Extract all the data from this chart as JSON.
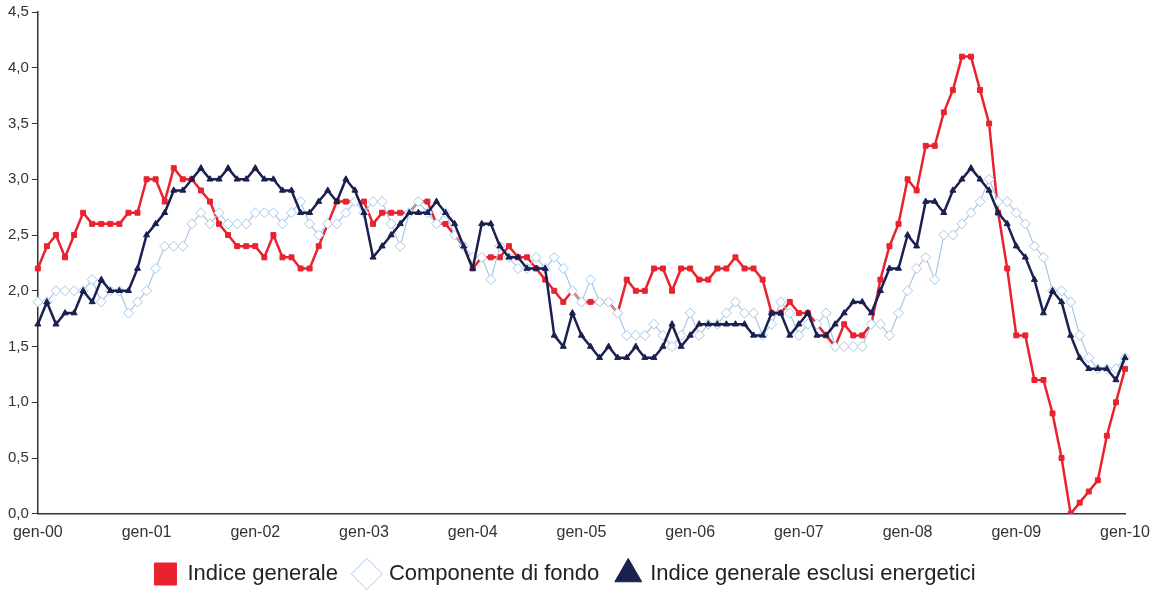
{
  "chart_data": {
    "type": "line",
    "categories": [
      "gen-00",
      null,
      null,
      null,
      null,
      null,
      null,
      null,
      null,
      null,
      null,
      null,
      "gen-01",
      null,
      null,
      null,
      null,
      null,
      null,
      null,
      null,
      null,
      null,
      null,
      "gen-02",
      null,
      null,
      null,
      null,
      null,
      null,
      null,
      null,
      null,
      null,
      null,
      "gen-03",
      null,
      null,
      null,
      null,
      null,
      null,
      null,
      null,
      null,
      null,
      null,
      "gen-04",
      null,
      null,
      null,
      null,
      null,
      null,
      null,
      null,
      null,
      null,
      null,
      "gen-05",
      null,
      null,
      null,
      null,
      null,
      null,
      null,
      null,
      null,
      null,
      null,
      "gen-06",
      null,
      null,
      null,
      null,
      null,
      null,
      null,
      null,
      null,
      null,
      null,
      "gen-07",
      null,
      null,
      null,
      null,
      null,
      null,
      null,
      null,
      null,
      null,
      null,
      "gen-08",
      null,
      null,
      null,
      null,
      null,
      null,
      null,
      null,
      null,
      null,
      null,
      "gen-09",
      null,
      null,
      null,
      null,
      null,
      null,
      null,
      null,
      null,
      null,
      null,
      "gen-10"
    ],
    "series": [
      {
        "name": "Indice generale",
        "color": "#e8232f",
        "marker": "square",
        "values": [
          2.2,
          2.4,
          2.5,
          2.3,
          2.5,
          2.7,
          2.6,
          2.6,
          2.6,
          2.6,
          2.7,
          2.7,
          3.0,
          3.0,
          2.8,
          3.1,
          3.0,
          3.0,
          2.9,
          2.8,
          2.6,
          2.5,
          2.4,
          2.4,
          2.4,
          2.3,
          2.5,
          2.3,
          2.3,
          2.2,
          2.2,
          2.4,
          2.6,
          2.8,
          2.8,
          2.8,
          2.8,
          2.6,
          2.7,
          2.7,
          2.7,
          2.7,
          2.8,
          2.8,
          2.6,
          2.6,
          2.5,
          2.4,
          2.2,
          2.3,
          2.3,
          2.3,
          2.4,
          2.3,
          2.3,
          2.2,
          2.1,
          2.0,
          1.9,
          2.0,
          1.9,
          1.9,
          1.9,
          1.9,
          1.8,
          2.1,
          2.0,
          2.0,
          2.2,
          2.2,
          2.0,
          2.2,
          2.2,
          2.1,
          2.1,
          2.2,
          2.2,
          2.3,
          2.2,
          2.2,
          2.1,
          1.8,
          1.8,
          1.9,
          1.8,
          1.8,
          1.7,
          1.6,
          1.5,
          1.7,
          1.6,
          1.6,
          1.7,
          2.1,
          2.4,
          2.6,
          3.0,
          2.9,
          3.3,
          3.3,
          3.6,
          3.8,
          4.1,
          4.1,
          3.8,
          3.5,
          2.7,
          2.2,
          1.6,
          1.6,
          1.2,
          1.2,
          0.9,
          0.5,
          0.0,
          0.1,
          0.2,
          0.3,
          0.7,
          1.0,
          1.3
        ]
      },
      {
        "name": "Componente di fondo",
        "color": "#a8c8e8",
        "marker": "diamond",
        "values": [
          1.9,
          1.9,
          2.0,
          2.0,
          2.0,
          2.0,
          2.1,
          1.9,
          2.0,
          2.0,
          1.8,
          1.9,
          2.0,
          2.2,
          2.4,
          2.4,
          2.4,
          2.6,
          2.7,
          2.6,
          2.7,
          2.6,
          2.6,
          2.6,
          2.7,
          2.7,
          2.7,
          2.6,
          2.7,
          2.8,
          2.6,
          2.5,
          2.6,
          2.6,
          2.7,
          2.8,
          2.7,
          2.8,
          2.8,
          2.6,
          2.4,
          2.7,
          2.8,
          2.7,
          2.6,
          2.7,
          2.5,
          2.4,
          2.3,
          2.3,
          2.1,
          2.4,
          2.3,
          2.2,
          2.2,
          2.3,
          2.2,
          2.3,
          2.2,
          2.0,
          1.9,
          2.1,
          1.9,
          1.9,
          1.8,
          1.6,
          1.6,
          1.6,
          1.7,
          1.6,
          1.5,
          1.6,
          1.8,
          1.6,
          1.7,
          1.7,
          1.8,
          1.9,
          1.8,
          1.8,
          1.6,
          1.7,
          1.9,
          1.8,
          1.6,
          1.7,
          1.7,
          1.8,
          1.5,
          1.5,
          1.5,
          1.5,
          1.7,
          1.7,
          1.6,
          1.8,
          2.0,
          2.2,
          2.3,
          2.1,
          2.5,
          2.5,
          2.6,
          2.7,
          2.8,
          3.0,
          2.8,
          2.8,
          2.7,
          2.6,
          2.4,
          2.3,
          2.0,
          2.0,
          1.9,
          1.6,
          1.4,
          1.3,
          1.3,
          1.3,
          1.4
        ]
      },
      {
        "name": "Indice generale esclusi energetici",
        "color": "#1a2050",
        "marker": "triangle",
        "values": [
          1.7,
          1.9,
          1.7,
          1.8,
          1.8,
          2.0,
          1.9,
          2.1,
          2.0,
          2.0,
          2.0,
          2.2,
          2.5,
          2.6,
          2.7,
          2.9,
          2.9,
          3.0,
          3.1,
          3.0,
          3.0,
          3.1,
          3.0,
          3.0,
          3.1,
          3.0,
          3.0,
          2.9,
          2.9,
          2.7,
          2.7,
          2.8,
          2.9,
          2.8,
          3.0,
          2.9,
          2.7,
          2.3,
          2.4,
          2.5,
          2.6,
          2.7,
          2.7,
          2.7,
          2.8,
          2.7,
          2.6,
          2.4,
          2.2,
          2.6,
          2.6,
          2.4,
          2.3,
          2.3,
          2.2,
          2.2,
          2.2,
          1.6,
          1.5,
          1.8,
          1.6,
          1.5,
          1.4,
          1.5,
          1.4,
          1.4,
          1.5,
          1.4,
          1.4,
          1.5,
          1.7,
          1.5,
          1.6,
          1.7,
          1.7,
          1.7,
          1.7,
          1.7,
          1.7,
          1.6,
          1.6,
          1.8,
          1.8,
          1.6,
          1.7,
          1.8,
          1.6,
          1.6,
          1.7,
          1.8,
          1.9,
          1.9,
          1.8,
          2.0,
          2.2,
          2.2,
          2.5,
          2.4,
          2.8,
          2.8,
          2.7,
          2.9,
          3.0,
          3.1,
          3.0,
          2.9,
          2.7,
          2.6,
          2.4,
          2.3,
          2.1,
          1.8,
          2.0,
          1.9,
          1.6,
          1.4,
          1.3,
          1.3,
          1.3,
          1.2,
          1.4
        ]
      }
    ],
    "ylim": [
      0,
      4.5
    ],
    "yticks": [
      {
        "value": 0,
        "label": "0,0"
      },
      {
        "value": 0.5,
        "label": "0,5"
      },
      {
        "value": 1,
        "label": "1,0"
      },
      {
        "value": 1.5,
        "label": "1,5"
      },
      {
        "value": 2,
        "label": "2,0"
      },
      {
        "value": 2.5,
        "label": "2,5"
      },
      {
        "value": 3,
        "label": "3,0"
      },
      {
        "value": 3.5,
        "label": "3,5"
      },
      {
        "value": 4,
        "label": "4,0"
      },
      {
        "value": 4.5,
        "label": "4,5"
      }
    ],
    "legend": "bottom"
  }
}
